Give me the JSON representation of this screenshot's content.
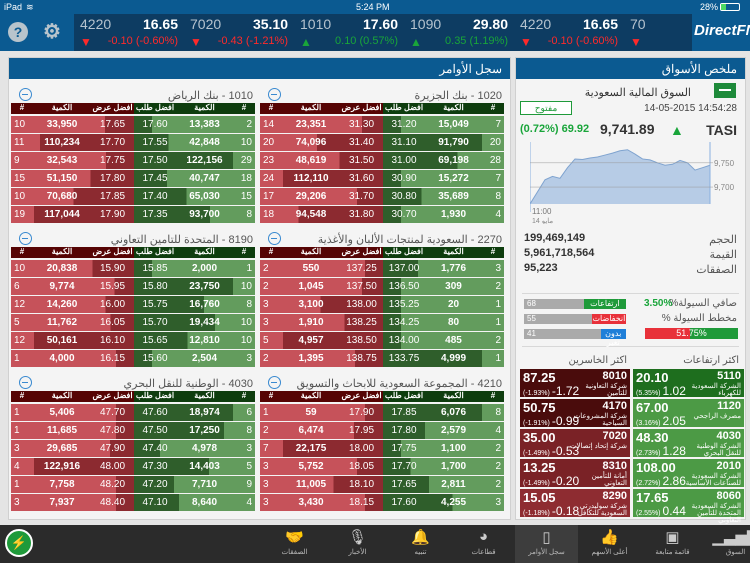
{
  "status": {
    "device": "iPad",
    "time": "5:24 PM",
    "battery": "28%"
  },
  "header": {
    "logo": "DirectFN",
    "icons": [
      "help-icon",
      "settings-gears-icon"
    ]
  },
  "ticker": [
    {
      "symbol": "4220",
      "last": "16.65",
      "change": "-0.10 (-0.60%)",
      "dir": "down"
    },
    {
      "symbol": "7020",
      "last": "35.10",
      "change": "-0.43 (-1.21%)",
      "dir": "down"
    },
    {
      "symbol": "1010",
      "last": "17.60",
      "change": "0.10 (0.57%)",
      "dir": "up"
    },
    {
      "symbol": "1090",
      "last": "29.80",
      "change": "0.35 (1.19%)",
      "dir": "up"
    },
    {
      "symbol": "4220",
      "last": "16.65",
      "change": "-0.10 (-0.60%)",
      "dir": "down"
    },
    {
      "symbol": "70",
      "last": "",
      "change": "",
      "dir": "down"
    }
  ],
  "orders": {
    "title": "سجل الأوامر",
    "headers": [
      "#",
      "الكمية",
      "افضل عرض",
      "افضل طلب",
      "الكمية",
      "#"
    ],
    "books": [
      {
        "title": "1010 - بنك الرياض",
        "rows": [
          [
            "10",
            "33,950",
            "17.65",
            "17.60",
            "13,383",
            "2"
          ],
          [
            "11",
            "110,234",
            "17.70",
            "17.55",
            "42,848",
            "10"
          ],
          [
            "9",
            "32,543",
            "17.75",
            "17.50",
            "122,156",
            "29"
          ],
          [
            "15",
            "51,150",
            "17.80",
            "17.45",
            "40,747",
            "18"
          ],
          [
            "10",
            "70,680",
            "17.85",
            "17.40",
            "65,030",
            "15"
          ],
          [
            "19",
            "117,044",
            "17.90",
            "17.35",
            "93,700",
            "8"
          ]
        ]
      },
      {
        "title": "1020 - بنك الجزيرة",
        "rows": [
          [
            "14",
            "23,351",
            "31.30",
            "31.20",
            "15,049",
            "7"
          ],
          [
            "20",
            "74,096",
            "31.40",
            "31.10",
            "91,790",
            "20"
          ],
          [
            "23",
            "48,619",
            "31.50",
            "31.00",
            "69,198",
            "28"
          ],
          [
            "24",
            "112,110",
            "31.60",
            "30.90",
            "15,272",
            "7"
          ],
          [
            "17",
            "29,206",
            "31.70",
            "30.80",
            "35,689",
            "8"
          ],
          [
            "18",
            "94,548",
            "31.80",
            "30.70",
            "1,930",
            "4"
          ]
        ]
      },
      {
        "title": "8190 - المتحدة للتامين التعاوني",
        "rows": [
          [
            "10",
            "20,838",
            "15.90",
            "15.85",
            "2,000",
            "1"
          ],
          [
            "6",
            "9,774",
            "15.95",
            "15.80",
            "23,750",
            "10"
          ],
          [
            "12",
            "14,260",
            "16.00",
            "15.75",
            "16,760",
            "8"
          ],
          [
            "5",
            "11,762",
            "16.05",
            "15.70",
            "19,434",
            "10"
          ],
          [
            "12",
            "50,161",
            "16.10",
            "15.65",
            "12,810",
            "10"
          ],
          [
            "1",
            "4,000",
            "16.15",
            "15.60",
            "2,504",
            "3"
          ]
        ]
      },
      {
        "title": "2270 - السعودية لمنتجات الألبان والأغذية",
        "rows": [
          [
            "2",
            "550",
            "137.25",
            "137.00",
            "1,776",
            "3"
          ],
          [
            "2",
            "1,045",
            "137.50",
            "136.50",
            "309",
            "2"
          ],
          [
            "3",
            "3,100",
            "138.00",
            "135.25",
            "20",
            "1"
          ],
          [
            "3",
            "1,910",
            "138.25",
            "134.25",
            "80",
            "1"
          ],
          [
            "5",
            "4,957",
            "138.50",
            "134.00",
            "485",
            "2"
          ],
          [
            "2",
            "1,395",
            "138.75",
            "133.75",
            "4,999",
            "1"
          ]
        ]
      },
      {
        "title": "4030 - الوطنية للنقل البحري",
        "rows": [
          [
            "1",
            "5,406",
            "47.70",
            "47.60",
            "18,974",
            "6"
          ],
          [
            "1",
            "11,685",
            "47.80",
            "47.50",
            "17,250",
            "8"
          ],
          [
            "3",
            "29,685",
            "47.90",
            "47.40",
            "4,978",
            "3"
          ],
          [
            "4",
            "122,916",
            "48.00",
            "47.30",
            "14,403",
            "5"
          ],
          [
            "1",
            "7,758",
            "48.20",
            "47.20",
            "7,710",
            "9"
          ],
          [
            "3",
            "7,937",
            "48.40",
            "47.10",
            "8,640",
            "4"
          ]
        ]
      },
      {
        "title": "4210 - المجموعة السعودية للابحاث والتسويق",
        "rows": [
          [
            "1",
            "59",
            "17.90",
            "17.85",
            "6,076",
            "8"
          ],
          [
            "2",
            "6,474",
            "17.95",
            "17.80",
            "2,579",
            "4"
          ],
          [
            "7",
            "22,175",
            "18.00",
            "17.75",
            "1,100",
            "2"
          ],
          [
            "3",
            "5,752",
            "18.05",
            "17.70",
            "1,700",
            "2"
          ],
          [
            "3",
            "11,005",
            "18.10",
            "17.65",
            "2,811",
            "2"
          ],
          [
            "3",
            "3,430",
            "18.15",
            "17.60",
            "4,255",
            "3"
          ]
        ]
      }
    ]
  },
  "summary": {
    "title": "ملخص الأسواق",
    "market": "السوق المالية السعودية",
    "status": "مفتوح",
    "datetime": "14-05-2015 14:54:28",
    "index": "TASI",
    "value": "9,741.89",
    "change": "69.92",
    "pct": "(0.72%)",
    "dir": "up",
    "chart_data": {
      "type": "area",
      "y_ticks": [
        "9,750",
        "9,700"
      ],
      "x_tick": "11:00",
      "x_date": "14 مايو",
      "ylim": [
        9665,
        9793
      ],
      "values": [
        9665,
        9690,
        9715,
        9722,
        9718,
        9740,
        9758,
        9757,
        9760,
        9762,
        9766,
        9770,
        9775,
        9777,
        9768,
        9758,
        9756,
        9750,
        9745,
        9747,
        9755,
        9750,
        9735,
        9740,
        9745
      ]
    },
    "stats": [
      {
        "label": "الحجم",
        "value": "199,469,149"
      },
      {
        "label": "القيمة",
        "value": "5,961,718,564"
      },
      {
        "label": "الصفقات",
        "value": "95,223"
      }
    ],
    "breadth": [
      {
        "label": "ارتفاعات",
        "count": 68,
        "color": "#1f9a3a"
      },
      {
        "label": "انخفاضات",
        "count": 55,
        "color": "#e8313a"
      },
      {
        "label": "بدون تغير",
        "count": 41,
        "color": "#1f7fd8"
      }
    ],
    "net_liquidity_label": "صافي السيولة%",
    "net_liquidity": "3.50%",
    "liquidity_chart_label": "مخطط السيولة %",
    "liquidity_inflow": "51.75%",
    "liquidity_inflow_pct": 51.75,
    "gainers_title": "اكثر ارتفاعات",
    "losers_title": "اكثر الخاسرين",
    "gainers": [
      {
        "symbol": "5110",
        "price": "20.10",
        "change": "1.02",
        "pct": "(5.35%)",
        "name": "الشركة السعودية للكهرباء",
        "color": "#1e6e1e"
      },
      {
        "symbol": "1120",
        "price": "67.00",
        "change": "2.05",
        "pct": "(3.16%)",
        "name": "مصرف الراجحي",
        "color": "#4c9a45"
      },
      {
        "symbol": "4030",
        "price": "48.30",
        "change": "1.28",
        "pct": "(2.73%)",
        "name": "الشركة الوطنية للنقل البحري",
        "color": "#4c9a45"
      },
      {
        "symbol": "2010",
        "price": "108.00",
        "change": "2.86",
        "pct": "(2.72%)",
        "name": "الشركة السعودية للصناعات الأساسية",
        "color": "#4c9a45"
      },
      {
        "symbol": "8060",
        "price": "17.65",
        "change": "0.44",
        "pct": "(2.55%)",
        "name": "الشركة السعودية المتحدة للتأمين التعاوني",
        "color": "#4c9a45"
      }
    ],
    "losers": [
      {
        "symbol": "8010",
        "price": "87.25",
        "change": "-1.72",
        "pct": "(-1.93%)",
        "name": "شركة التعاونية للتأمين",
        "color": "#4a0c0c"
      },
      {
        "symbol": "4170",
        "price": "50.75",
        "change": "-0.99",
        "pct": "(-1.91%)",
        "name": "شركة المشروعات السياحية",
        "color": "#4a0c0c"
      },
      {
        "symbol": "7020",
        "price": "35.00",
        "change": "-0.53",
        "pct": "(-1.49%)",
        "name": "شركة إتحاد إتصالات",
        "color": "#7a2226"
      },
      {
        "symbol": "8310",
        "price": "13.25",
        "change": "-0.20",
        "pct": "(-1.49%)",
        "name": "أمانة للتأمين التعاوني",
        "color": "#7a2226"
      },
      {
        "symbol": "8290",
        "price": "15.05",
        "change": "-0.18",
        "pct": "(-1.18%)",
        "name": "شركة سوليدرتي السعودية للتكافل",
        "color": "#8e2c31"
      }
    ]
  },
  "nav": [
    {
      "label": "السوق",
      "icon": "bar-chart-icon",
      "glyph": "▁▃▅▇"
    },
    {
      "label": "قائمة متابعة",
      "icon": "briefcase-icon",
      "glyph": "▣"
    },
    {
      "label": "أعلى الأسهم",
      "icon": "thumbs-up-icon",
      "glyph": "👍"
    },
    {
      "label": "سجل الأوامر",
      "icon": "document-icon",
      "glyph": "▯",
      "active": true
    },
    {
      "label": "قطاعات",
      "icon": "pie-chart-icon",
      "glyph": "◕"
    },
    {
      "label": "تنبيه",
      "icon": "bell-icon",
      "glyph": "🔔"
    },
    {
      "label": "الأخبار",
      "icon": "microphone-icon",
      "glyph": "🎙"
    },
    {
      "label": "الصفقات",
      "icon": "handshake-icon",
      "glyph": "🤝"
    }
  ]
}
